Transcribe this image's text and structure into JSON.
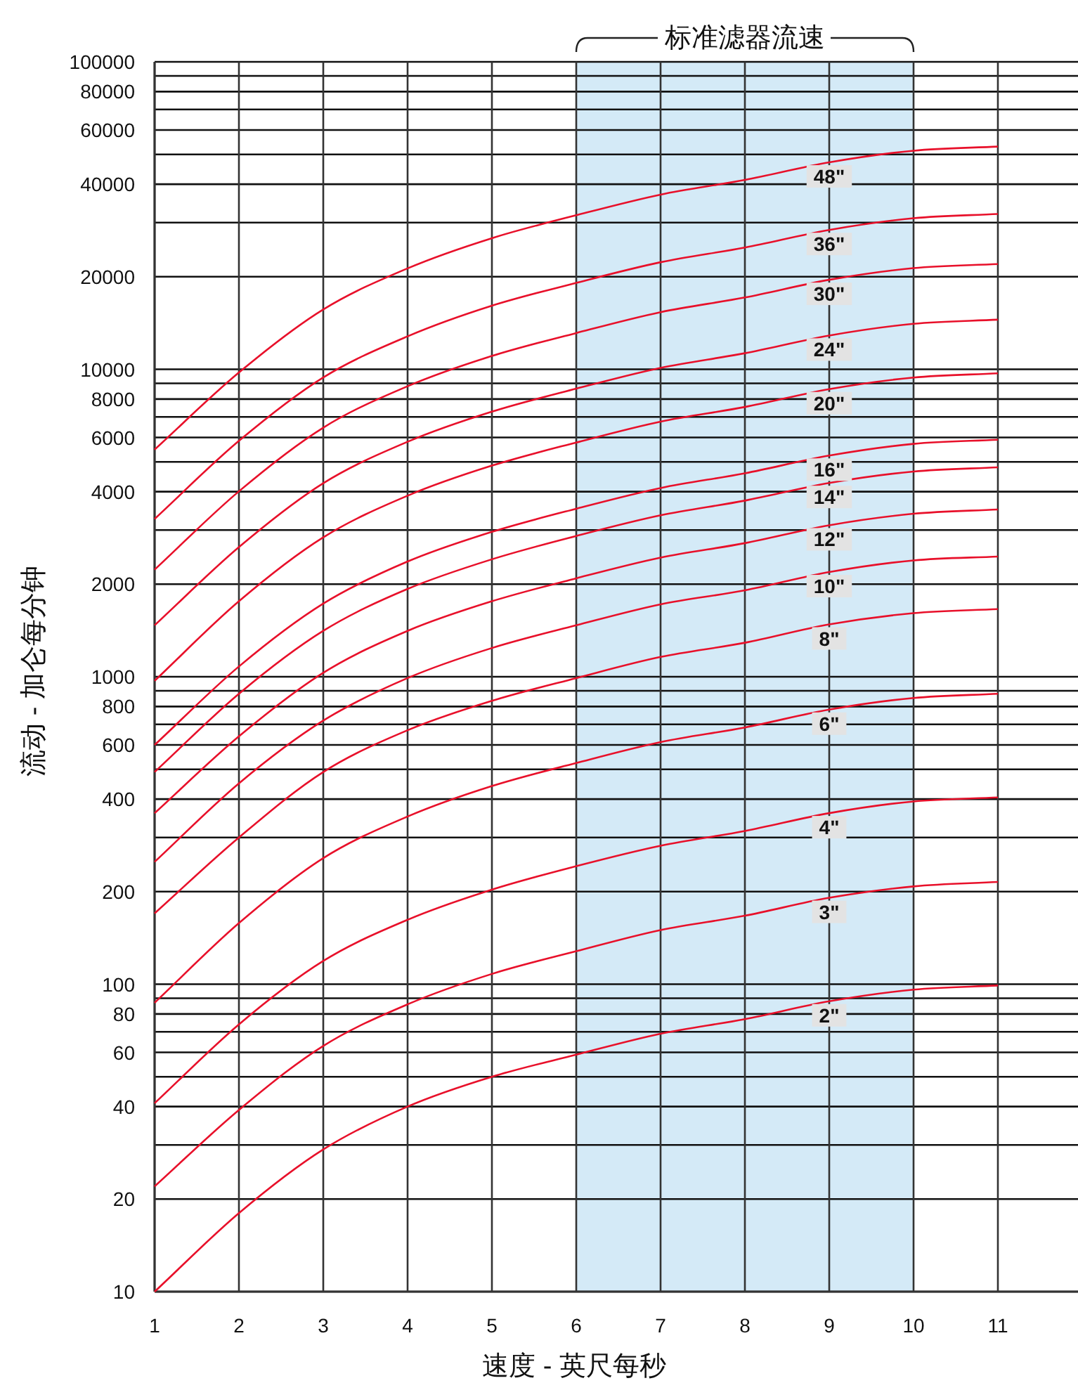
{
  "chart_data": {
    "type": "line",
    "xlabel": "速度 - 英尺每秒",
    "ylabel": "流动 - 加仑每分钟",
    "x": [
      1,
      2,
      3,
      4,
      5,
      6,
      7,
      8,
      9,
      10,
      11
    ],
    "series": [
      {
        "name": "48\"",
        "color": "#e8102a",
        "values": [
          5480,
          9760,
          15650,
          21300,
          26700,
          31700,
          37000,
          41300,
          47100,
          51400,
          53000
        ]
      },
      {
        "name": "36\"",
        "color": "#e8102a",
        "values": [
          3260,
          5850,
          9410,
          12800,
          16100,
          19100,
          22300,
          24900,
          28400,
          31000,
          32000
        ]
      },
      {
        "name": "30\"",
        "color": "#e8102a",
        "values": [
          2230,
          4010,
          6460,
          8810,
          11050,
          13120,
          15340,
          17120,
          19550,
          21330,
          22000
        ]
      },
      {
        "name": "24\"",
        "color": "#e8102a",
        "values": [
          1470,
          2640,
          4260,
          5810,
          7280,
          8650,
          10110,
          11280,
          12880,
          14060,
          14500
        ]
      },
      {
        "name": "20\"",
        "color": "#e8102a",
        "values": [
          970,
          1760,
          2840,
          3880,
          4860,
          5780,
          6760,
          7540,
          8620,
          9400,
          9700
        ]
      },
      {
        "name": "16\"",
        "color": "#e8102a",
        "values": [
          600,
          1080,
          1730,
          2370,
          2960,
          3520,
          4110,
          4590,
          5240,
          5720,
          5900
        ]
      },
      {
        "name": "14\"",
        "color": "#e8102a",
        "values": [
          490,
          880,
          1410,
          1930,
          2410,
          2870,
          3350,
          3740,
          4270,
          4650,
          4800
        ]
      },
      {
        "name": "12\"",
        "color": "#e8102a",
        "values": [
          360,
          640,
          1030,
          1410,
          1760,
          2090,
          2440,
          2720,
          3110,
          3390,
          3500
        ]
      },
      {
        "name": "10\"",
        "color": "#e8102a",
        "values": [
          250,
          450,
          720,
          990,
          1240,
          1470,
          1720,
          1910,
          2190,
          2390,
          2460
        ]
      },
      {
        "name": "8\"",
        "color": "#e8102a",
        "values": [
          170,
          300,
          490,
          670,
          835,
          990,
          1160,
          1290,
          1480,
          1610,
          1660
        ]
      },
      {
        "name": "6\"",
        "color": "#e8102a",
        "values": [
          87,
          158,
          257,
          351,
          441,
          524,
          613,
          684,
          782,
          853,
          880
        ]
      },
      {
        "name": "4\"",
        "color": "#e8102a",
        "values": [
          41,
          74,
          119,
          162,
          203,
          242,
          282,
          315,
          360,
          393,
          405
        ]
      },
      {
        "name": "3\"",
        "color": "#e8102a",
        "values": [
          22,
          39,
          63,
          86,
          108,
          128,
          150,
          167,
          191,
          208,
          215
        ]
      },
      {
        "name": "2\"",
        "color": "#e8102a",
        "values": [
          10,
          18,
          29,
          40,
          50,
          59,
          69,
          77,
          88,
          96,
          99
        ]
      }
    ],
    "xlim": [
      1,
      11.95
    ],
    "xticks": [
      1,
      2,
      3,
      4,
      5,
      6,
      7,
      8,
      9,
      10,
      11
    ],
    "ylim": [
      10,
      100000
    ],
    "yticks": [
      10,
      20,
      {
        "value": 30,
        "label": null
      },
      40,
      {
        "value": 50,
        "label": null
      },
      60,
      {
        "value": 70,
        "label": null
      },
      80,
      {
        "value": 90,
        "label": null
      },
      100,
      200,
      {
        "value": 300,
        "label": null
      },
      400,
      {
        "value": 500,
        "label": null
      },
      600,
      {
        "value": 700,
        "label": null
      },
      800,
      {
        "value": 900,
        "label": null
      },
      1000,
      2000,
      {
        "value": 3000,
        "label": null
      },
      4000,
      {
        "value": 5000,
        "label": null
      },
      6000,
      {
        "value": 7000,
        "label": null
      },
      8000,
      {
        "value": 9000,
        "label": null
      },
      10000,
      20000,
      {
        "value": 30000,
        "label": null
      },
      40000,
      {
        "value": 50000,
        "label": null
      },
      60000,
      {
        "value": 70000,
        "label": null
      },
      80000,
      {
        "value": 90000,
        "label": null
      },
      100000
    ],
    "log": "y",
    "grid": true,
    "legend": false,
    "marker": "none",
    "line_style": "solid",
    "bands": [
      {
        "axis": "x",
        "from": 6,
        "to": 10,
        "label": "标准滤器流速",
        "color": "#d4eaf7"
      }
    ]
  }
}
